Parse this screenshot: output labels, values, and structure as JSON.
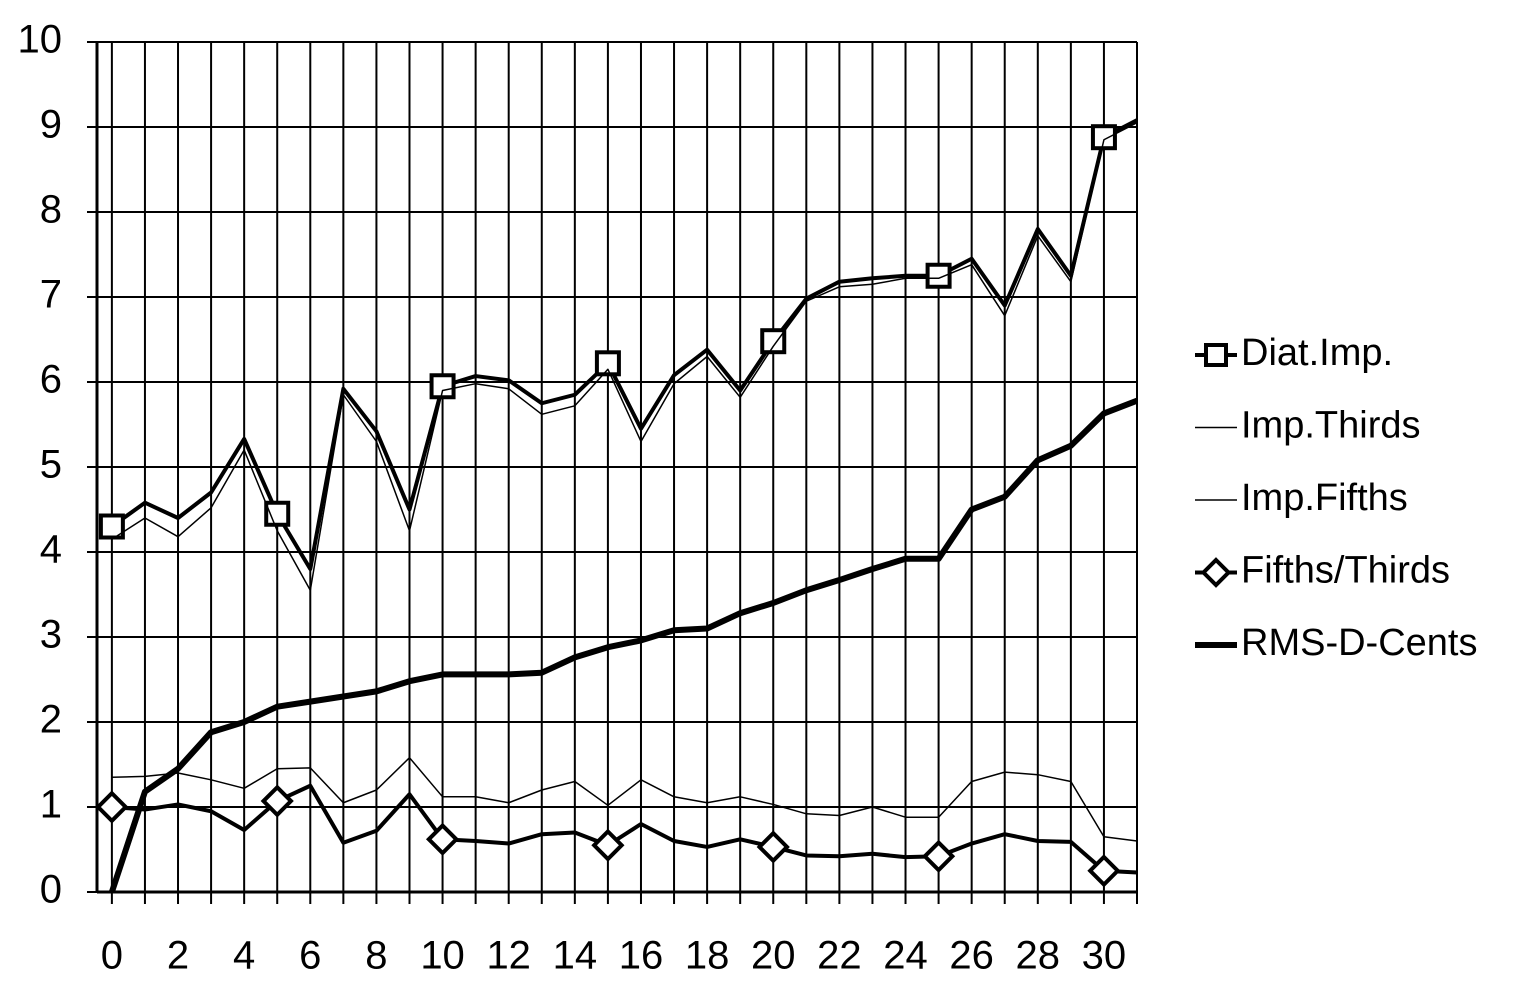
{
  "chart_data": {
    "type": "line",
    "x": [
      0,
      1,
      2,
      3,
      4,
      5,
      6,
      7,
      8,
      9,
      10,
      11,
      12,
      13,
      14,
      15,
      16,
      17,
      18,
      19,
      20,
      21,
      22,
      23,
      24,
      25,
      26,
      27,
      28,
      29,
      30,
      31
    ],
    "xlim": [
      -0.45,
      31
    ],
    "xticks": [
      0,
      2,
      4,
      6,
      8,
      10,
      12,
      14,
      16,
      18,
      20,
      22,
      24,
      26,
      28,
      30
    ],
    "xminorticks": [
      1,
      3,
      5,
      7,
      9,
      11,
      13,
      15,
      17,
      19,
      21,
      23,
      25,
      27,
      29,
      31
    ],
    "ylim": [
      0,
      10
    ],
    "yticks": [
      0,
      1,
      2,
      3,
      4,
      5,
      6,
      7,
      8,
      9,
      10
    ],
    "grid": true,
    "legend": "right",
    "marker_every": 5,
    "series": [
      {
        "name": "Diat.Imp.",
        "color": "#000000",
        "width": 4,
        "marker": "square",
        "values": [
          4.3,
          4.58,
          4.4,
          4.7,
          5.33,
          4.45,
          3.8,
          5.92,
          5.42,
          4.5,
          5.95,
          6.07,
          6.02,
          5.75,
          5.85,
          6.22,
          5.45,
          6.08,
          6.38,
          5.9,
          6.48,
          6.98,
          7.18,
          7.22,
          7.25,
          7.25,
          7.45,
          6.9,
          7.8,
          7.25,
          8.88,
          9.08
        ]
      },
      {
        "name": "Imp.Thirds",
        "color": "#000000",
        "width": 1.5,
        "marker": "none",
        "values": [
          4.15,
          4.4,
          4.18,
          4.52,
          5.2,
          4.25,
          3.55,
          5.85,
          5.3,
          4.25,
          5.9,
          5.98,
          5.92,
          5.62,
          5.72,
          6.15,
          5.3,
          5.98,
          6.3,
          5.82,
          6.42,
          6.95,
          7.12,
          7.15,
          7.22,
          7.22,
          7.38,
          6.78,
          7.72,
          7.18,
          8.85,
          9.05
        ]
      },
      {
        "name": "Imp.Fifths",
        "color": "#000000",
        "width": 1.5,
        "marker": "none",
        "values": [
          1.35,
          1.36,
          1.4,
          1.32,
          1.22,
          1.45,
          1.46,
          1.05,
          1.2,
          1.58,
          1.12,
          1.12,
          1.05,
          1.2,
          1.3,
          1.02,
          1.32,
          1.12,
          1.05,
          1.12,
          1.03,
          0.92,
          0.9,
          1.0,
          0.88,
          0.88,
          1.3,
          1.41,
          1.38,
          1.3,
          0.65,
          0.6
        ]
      },
      {
        "name": "Fifths/Thirds",
        "color": "#000000",
        "width": 4,
        "marker": "diamond",
        "values": [
          1.0,
          0.97,
          1.03,
          0.95,
          0.73,
          1.07,
          1.25,
          0.58,
          0.72,
          1.15,
          0.62,
          0.6,
          0.57,
          0.68,
          0.7,
          0.55,
          0.8,
          0.6,
          0.53,
          0.62,
          0.53,
          0.43,
          0.42,
          0.45,
          0.41,
          0.42,
          0.57,
          0.68,
          0.6,
          0.59,
          0.25,
          0.23
        ]
      },
      {
        "name": "RMS-D-Cents",
        "color": "#000000",
        "width": 6,
        "marker": "none",
        "values": [
          0,
          1.18,
          1.45,
          1.88,
          2.0,
          2.18,
          2.24,
          2.3,
          2.36,
          2.48,
          2.56,
          2.56,
          2.56,
          2.58,
          2.76,
          2.88,
          2.96,
          3.08,
          3.1,
          3.28,
          3.4,
          3.55,
          3.67,
          3.8,
          3.92,
          3.92,
          4.5,
          4.65,
          5.08,
          5.25,
          5.63,
          5.78
        ]
      }
    ]
  }
}
